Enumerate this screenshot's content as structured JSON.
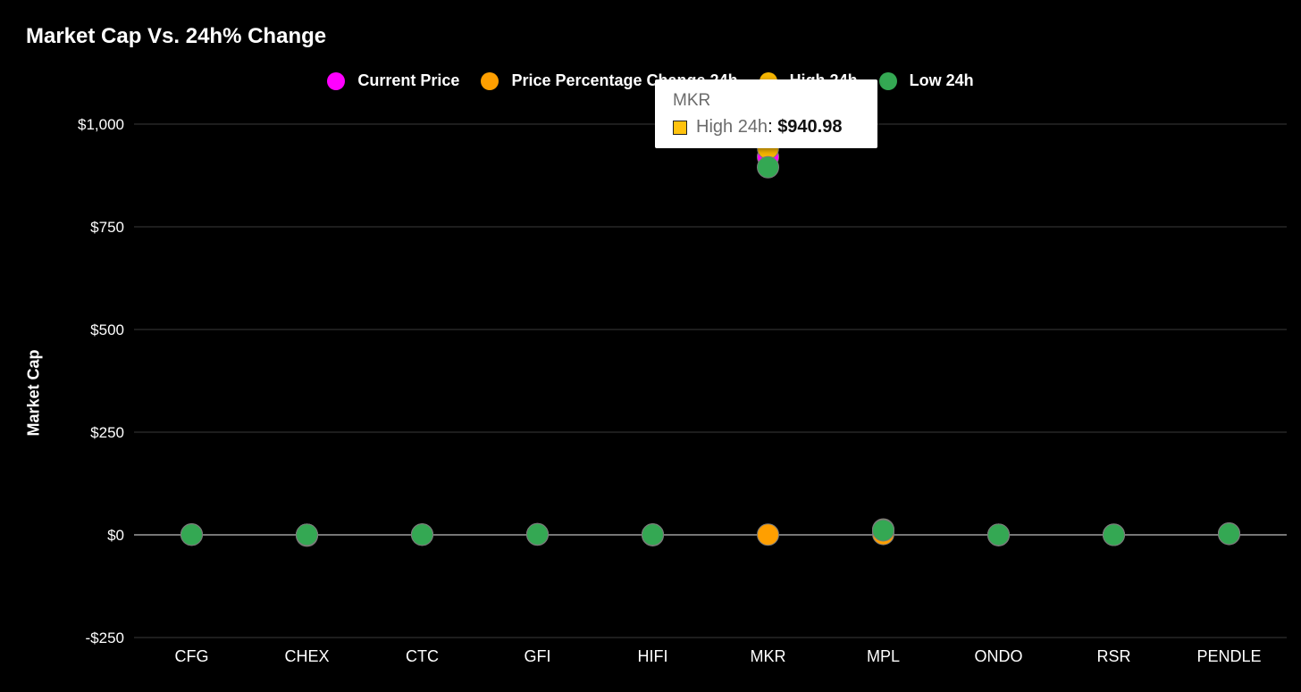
{
  "chart_data": {
    "type": "scatter",
    "title": "Market Cap Vs. 24h% Change",
    "ylabel": "Market Cap",
    "xlabel": "",
    "ylim": [
      -250,
      1000
    ],
    "yticks": [
      {
        "value": 1000,
        "label": "$1,000"
      },
      {
        "value": 750,
        "label": "$750"
      },
      {
        "value": 500,
        "label": "$500"
      },
      {
        "value": 250,
        "label": "$250"
      },
      {
        "value": 0,
        "label": "$0"
      },
      {
        "value": -250,
        "label": "-$250"
      }
    ],
    "grid": true,
    "legend_position": "top",
    "categories": [
      "CFG",
      "CHEX",
      "CTC",
      "GFI",
      "HIFI",
      "MKR",
      "MPL",
      "ONDO",
      "RSR",
      "PENDLE"
    ],
    "series": [
      {
        "name": "Current Price",
        "color": "#ff00ff",
        "values": [
          0.5,
          0.2,
          0.5,
          1.5,
          0.7,
          920,
          12,
          0.3,
          0.003,
          3
        ]
      },
      {
        "name": "Price Percentage Change 24h",
        "color": "#ff9f00",
        "values": [
          1.2,
          -2,
          0.8,
          0.5,
          -1,
          0.5,
          2,
          -1,
          0.5,
          2
        ]
      },
      {
        "name": "High 24h",
        "color": "#f4b400",
        "values": [
          0.5,
          0.2,
          0.5,
          1.5,
          0.7,
          940.98,
          13,
          0.3,
          0.003,
          3.2
        ]
      },
      {
        "name": "Low 24h",
        "color": "#34a853",
        "values": [
          0.5,
          0.2,
          0.5,
          1.4,
          0.6,
          895,
          11,
          0.3,
          0.003,
          2.8
        ]
      }
    ],
    "tooltip": {
      "category": "MKR",
      "series_label": "High 24h",
      "value_text": "$940.98",
      "swatch_color": "#ffc20e"
    }
  }
}
